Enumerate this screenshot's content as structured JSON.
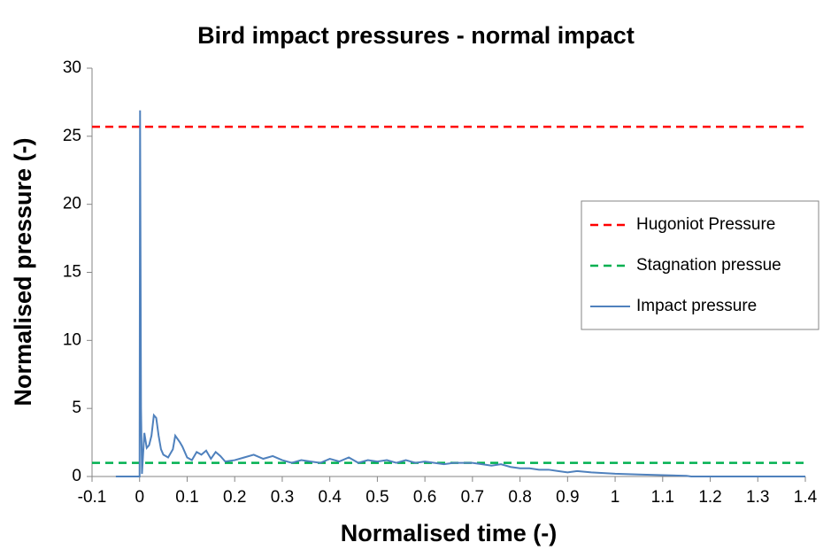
{
  "chart_data": {
    "type": "line",
    "title": "Bird impact pressures - normal impact",
    "x_label": "Normalised time (-)",
    "y_label": "Normalised pressure (-)",
    "xlim": [
      -0.1,
      1.4
    ],
    "ylim": [
      0,
      30
    ],
    "xticks": [
      -0.1,
      0,
      0.1,
      0.2,
      0.3,
      0.4,
      0.5,
      0.6,
      0.7,
      0.8,
      0.9,
      1,
      1.1,
      1.2,
      1.3,
      1.4
    ],
    "yticks": [
      0,
      5,
      10,
      15,
      20,
      25,
      30
    ],
    "grid": false,
    "legend": "right",
    "series": [
      {
        "name": "Hugoniot Pressure",
        "color": "#ff0000",
        "line_style": "dashed",
        "x": [
          -0.1,
          1.4
        ],
        "values": [
          25.7,
          25.7
        ]
      },
      {
        "name": "Stagnation pressue",
        "color": "#00b050",
        "line_style": "dashed",
        "x": [
          -0.1,
          1.4
        ],
        "values": [
          1.0,
          1.0
        ]
      },
      {
        "name": "Impact pressure",
        "color": "#4f81bd",
        "line_style": "solid",
        "x": [
          -0.05,
          0,
          0.001,
          0.003,
          0.005,
          0.01,
          0.015,
          0.02,
          0.025,
          0.03,
          0.035,
          0.04,
          0.045,
          0.05,
          0.06,
          0.07,
          0.075,
          0.085,
          0.09,
          0.1,
          0.11,
          0.12,
          0.13,
          0.14,
          0.15,
          0.16,
          0.17,
          0.18,
          0.2,
          0.22,
          0.24,
          0.26,
          0.28,
          0.3,
          0.32,
          0.34,
          0.36,
          0.38,
          0.4,
          0.42,
          0.44,
          0.46,
          0.48,
          0.5,
          0.52,
          0.54,
          0.56,
          0.58,
          0.6,
          0.62,
          0.64,
          0.66,
          0.68,
          0.7,
          0.72,
          0.74,
          0.76,
          0.78,
          0.8,
          0.82,
          0.84,
          0.86,
          0.88,
          0.9,
          0.92,
          0.95,
          1.0,
          1.05,
          1.1,
          1.15,
          1.16,
          1.4
        ],
        "values": [
          0,
          0,
          26.9,
          5,
          0.2,
          3.2,
          2.1,
          2.3,
          3.0,
          4.5,
          4.3,
          3.0,
          2.0,
          1.6,
          1.4,
          2.0,
          3.0,
          2.5,
          2.2,
          1.4,
          1.2,
          1.8,
          1.6,
          1.9,
          1.3,
          1.8,
          1.5,
          1.1,
          1.2,
          1.4,
          1.6,
          1.3,
          1.5,
          1.2,
          1.0,
          1.2,
          1.1,
          1.0,
          1.3,
          1.1,
          1.4,
          1.0,
          1.2,
          1.1,
          1.2,
          1.0,
          1.2,
          1.0,
          1.1,
          1.0,
          0.9,
          1.0,
          1.0,
          1.0,
          0.9,
          0.8,
          0.9,
          0.7,
          0.6,
          0.6,
          0.5,
          0.5,
          0.4,
          0.3,
          0.4,
          0.3,
          0.2,
          0.15,
          0.1,
          0.05,
          0,
          0
        ]
      }
    ]
  }
}
